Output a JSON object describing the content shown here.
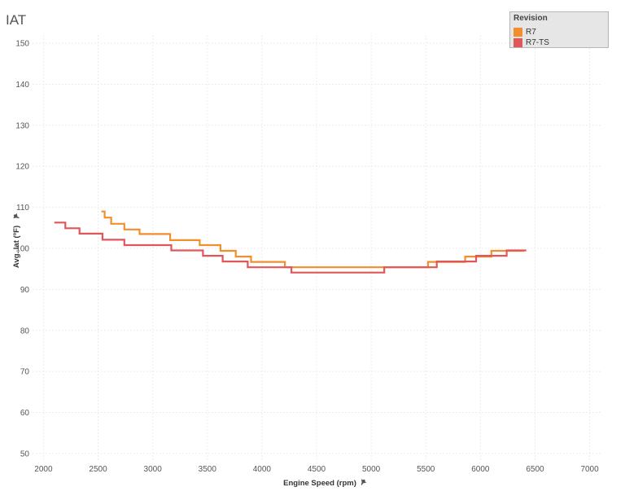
{
  "chart_data": {
    "type": "line",
    "title": "IAT",
    "xlabel": "Engine Speed (rpm)",
    "ylabel": "Avg. Iat (ºF)",
    "xlim": [
      1900,
      7100
    ],
    "ylim": [
      48,
      152
    ],
    "xticks": [
      2000,
      2500,
      3000,
      3500,
      4000,
      4500,
      5000,
      5500,
      6000,
      6500,
      7000
    ],
    "yticks": [
      50,
      60,
      70,
      80,
      90,
      100,
      110,
      120,
      130,
      140,
      150
    ],
    "grid": true,
    "legend": {
      "title": "Revision",
      "position": "top-right"
    },
    "series": [
      {
        "name": "R7",
        "color": "#f28e2b",
        "x": [
          2530,
          2560,
          2620,
          2740,
          2880,
          3160,
          3430,
          3620,
          3760,
          3900,
          4210,
          4500,
          5000,
          5520,
          5860,
          6100,
          6400
        ],
        "y": [
          109,
          107.5,
          106,
          104.6,
          103.5,
          102,
          100.8,
          99.4,
          98,
          96.7,
          95.4,
          95.4,
          95.4,
          96.7,
          98,
          99.4,
          99.4
        ]
      },
      {
        "name": "R7-TS",
        "color": "#e15759",
        "x": [
          2100,
          2200,
          2330,
          2540,
          2740,
          3170,
          3460,
          3640,
          3870,
          4270,
          4700,
          5120,
          5600,
          5960,
          6240,
          6420
        ],
        "y": [
          106.3,
          104.9,
          103.6,
          102.1,
          100.8,
          99.5,
          98.2,
          96.8,
          95.4,
          94.1,
          94.1,
          95.4,
          96.8,
          98.2,
          99.5,
          99.5
        ]
      }
    ]
  }
}
